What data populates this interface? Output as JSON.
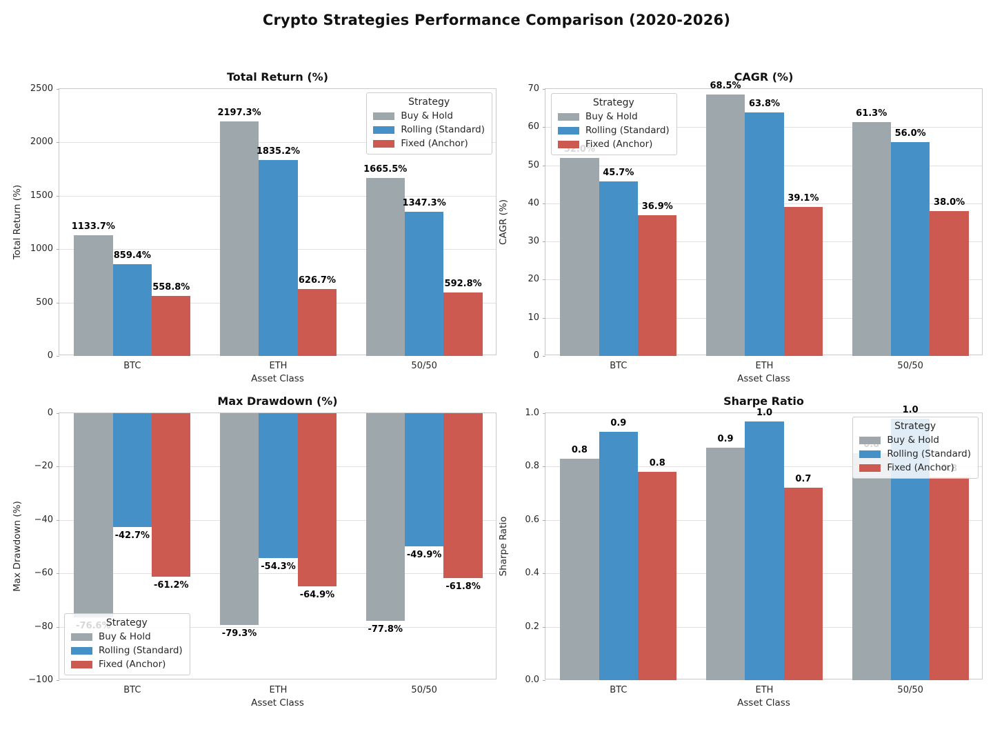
{
  "figure": {
    "title": "Crypto Strategies Performance Comparison (2020-2026)"
  },
  "palette": {
    "buy_hold": "#9EA7AC",
    "rolling": "#4690C8",
    "fixed": "#CC5A50"
  },
  "legend": {
    "title": "Strategy",
    "items": [
      {
        "label": "Buy & Hold",
        "color_key": "buy_hold"
      },
      {
        "label": "Rolling (Standard)",
        "color_key": "rolling"
      },
      {
        "label": "Fixed (Anchor)",
        "color_key": "fixed"
      }
    ]
  },
  "chart_data": [
    {
      "type": "bar",
      "title": "Total Return (%)",
      "xlabel": "Asset Class",
      "ylabel": "Total Return (%)",
      "ylim": [
        0,
        2500
      ],
      "yticks": [
        0,
        500,
        1000,
        1500,
        2000,
        2500
      ],
      "ytick_labels": [
        "0",
        "500",
        "1000",
        "1500",
        "2000",
        "2500"
      ],
      "categories": [
        "BTC",
        "ETH",
        "50/50"
      ],
      "grid": true,
      "legend_position": "top-right",
      "series": [
        {
          "name": "Buy & Hold",
          "color_key": "buy_hold",
          "values": [
            1133.7,
            2197.3,
            1665.5
          ],
          "labels": [
            "1133.7%",
            "2197.3%",
            "1665.5%"
          ]
        },
        {
          "name": "Rolling (Standard)",
          "color_key": "rolling",
          "values": [
            859.4,
            1835.2,
            1347.3
          ],
          "labels": [
            "859.4%",
            "1835.2%",
            "1347.3%"
          ]
        },
        {
          "name": "Fixed (Anchor)",
          "color_key": "fixed",
          "values": [
            558.8,
            626.7,
            592.8
          ],
          "labels": [
            "558.8%",
            "626.7%",
            "592.8%"
          ]
        }
      ]
    },
    {
      "type": "bar",
      "title": "CAGR (%)",
      "xlabel": "Asset Class",
      "ylabel": "CAGR (%)",
      "ylim": [
        0,
        70
      ],
      "yticks": [
        0,
        10,
        20,
        30,
        40,
        50,
        60,
        70
      ],
      "ytick_labels": [
        "0",
        "10",
        "20",
        "30",
        "40",
        "50",
        "60",
        "70"
      ],
      "categories": [
        "BTC",
        "ETH",
        "50/50"
      ],
      "grid": true,
      "legend_position": "top-left",
      "series": [
        {
          "name": "Buy & Hold",
          "color_key": "buy_hold",
          "values": [
            52.0,
            68.5,
            61.3
          ],
          "labels": [
            "52.0%",
            "68.5%",
            "61.3%"
          ]
        },
        {
          "name": "Rolling (Standard)",
          "color_key": "rolling",
          "values": [
            45.7,
            63.8,
            56.0
          ],
          "labels": [
            "45.7%",
            "63.8%",
            "56.0%"
          ]
        },
        {
          "name": "Fixed (Anchor)",
          "color_key": "fixed",
          "values": [
            36.9,
            39.1,
            38.0
          ],
          "labels": [
            "36.9%",
            "39.1%",
            "38.0%"
          ]
        }
      ]
    },
    {
      "type": "bar",
      "title": "Max Drawdown (%)",
      "xlabel": "Asset Class",
      "ylabel": "Max Drawdown (%)",
      "ylim": [
        -100,
        0
      ],
      "yticks": [
        0,
        -20,
        -40,
        -60,
        -80,
        -100
      ],
      "ytick_labels": [
        "0",
        "−20",
        "−40",
        "−60",
        "−80",
        "−100"
      ],
      "categories": [
        "BTC",
        "ETH",
        "50/50"
      ],
      "grid": true,
      "legend_position": "bottom-left",
      "series": [
        {
          "name": "Buy & Hold",
          "color_key": "buy_hold",
          "values": [
            -76.6,
            -79.3,
            -77.8
          ],
          "labels": [
            "-76.6%",
            "-79.3%",
            "-77.8%"
          ]
        },
        {
          "name": "Rolling (Standard)",
          "color_key": "rolling",
          "values": [
            -42.7,
            -54.3,
            -49.9
          ],
          "labels": [
            "-42.7%",
            "-54.3%",
            "-49.9%"
          ]
        },
        {
          "name": "Fixed (Anchor)",
          "color_key": "fixed",
          "values": [
            -61.2,
            -64.9,
            -61.8
          ],
          "labels": [
            "-61.2%",
            "-64.9%",
            "-61.8%"
          ]
        }
      ]
    },
    {
      "type": "bar",
      "title": "Sharpe Ratio",
      "xlabel": "Asset Class",
      "ylabel": "Sharpe Ratio",
      "ylim": [
        0,
        1.0
      ],
      "yticks": [
        0,
        0.2,
        0.4,
        0.6,
        0.8,
        1.0
      ],
      "ytick_labels": [
        "0.0",
        "0.2",
        "0.4",
        "0.6",
        "0.8",
        "1.0"
      ],
      "categories": [
        "BTC",
        "ETH",
        "50/50"
      ],
      "grid": true,
      "legend_position": "top-right",
      "series": [
        {
          "name": "Buy & Hold",
          "color_key": "buy_hold",
          "values": [
            0.83,
            0.87,
            0.85
          ],
          "labels": [
            "0.8",
            "0.9",
            "0.8"
          ]
        },
        {
          "name": "Rolling (Standard)",
          "color_key": "rolling",
          "values": [
            0.93,
            0.97,
            0.98
          ],
          "labels": [
            "0.9",
            "1.0",
            "1.0"
          ]
        },
        {
          "name": "Fixed (Anchor)",
          "color_key": "fixed",
          "values": [
            0.78,
            0.72,
            0.76
          ],
          "labels": [
            "0.8",
            "0.7",
            "0.8"
          ]
        }
      ]
    }
  ]
}
